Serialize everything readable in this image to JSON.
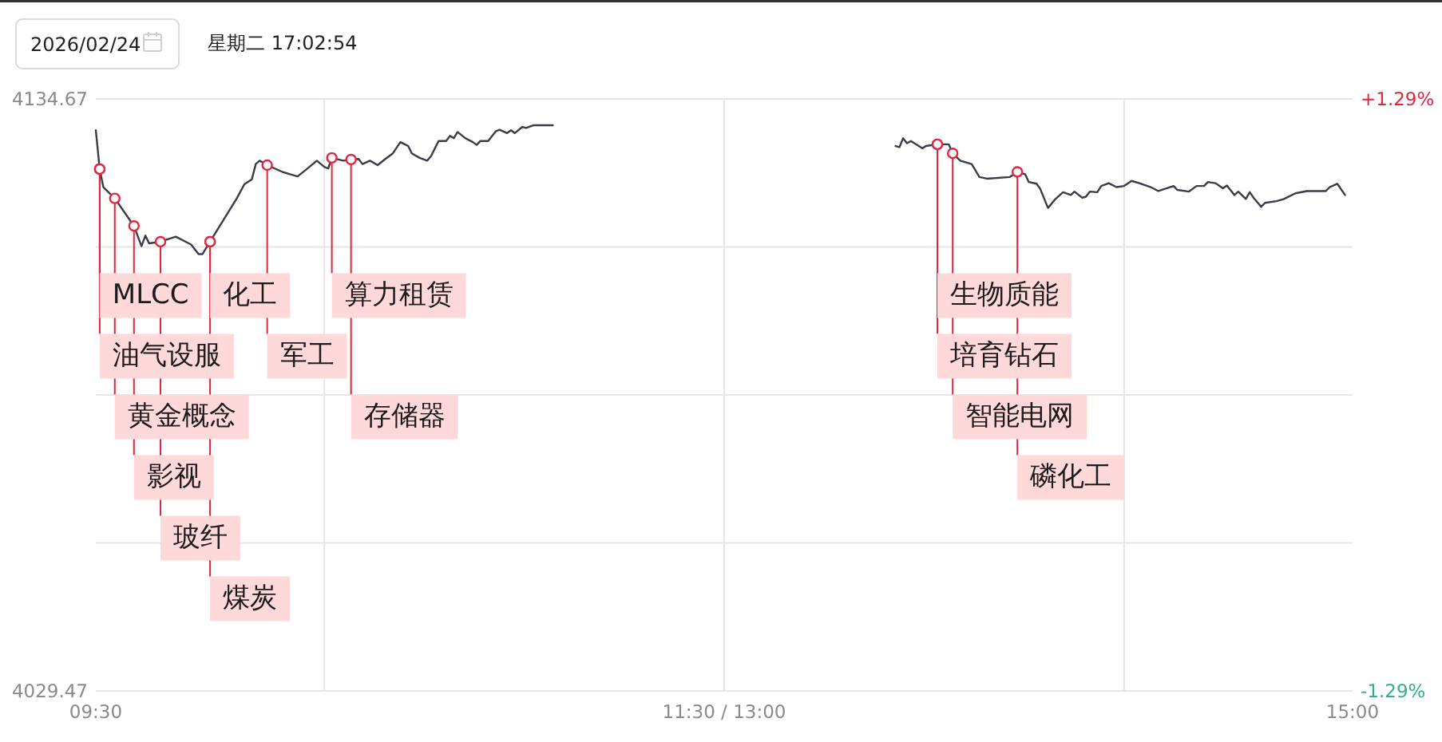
{
  "chart_data": {
    "type": "line",
    "title": "2026/02/24",
    "subtitle": "星期二 17:02:54",
    "x": [
      9.5,
      9.517,
      9.533,
      9.583,
      9.667,
      9.7,
      9.717,
      9.733,
      9.783,
      9.85,
      9.917,
      9.95,
      9.967,
      10.0,
      10.117,
      10.15,
      10.183,
      10.2,
      10.217,
      10.25,
      10.317,
      10.35,
      10.383,
      10.417,
      10.467,
      10.5,
      10.517,
      10.533,
      10.583,
      10.617,
      10.65,
      10.667,
      10.7,
      10.733,
      10.767,
      10.8,
      10.833,
      10.867,
      10.883,
      10.917,
      10.95,
      10.967,
      11.0,
      11.033,
      11.05,
      11.067,
      11.083,
      11.117,
      11.15,
      11.167,
      11.183,
      11.217,
      11.25,
      11.267,
      11.3,
      11.317,
      11.333,
      11.367,
      11.383,
      11.417,
      11.5,
      12.25,
      13.0,
      13.017,
      13.033,
      13.05,
      13.067,
      13.117,
      13.133,
      13.183,
      13.233,
      13.25,
      13.283,
      13.333,
      13.367,
      13.4,
      13.5,
      13.533,
      13.567,
      13.583,
      13.617,
      13.633,
      13.667,
      13.7,
      13.733,
      13.767,
      13.783,
      13.817,
      13.833,
      13.85,
      13.883,
      13.9,
      13.933,
      13.967,
      14.0,
      14.033,
      14.067,
      14.117,
      14.15,
      14.217,
      14.233,
      14.283,
      14.317,
      14.35,
      14.367,
      14.4,
      14.433,
      14.45,
      14.483,
      14.5,
      14.533,
      14.55,
      14.567,
      14.6,
      14.617,
      14.667,
      14.7,
      14.75,
      14.8,
      14.883,
      14.9,
      14.933,
      14.967
    ],
    "values": [
      4129.1,
      4122.2,
      4119.0,
      4117.0,
      4112.1,
      4108.5,
      4110.4,
      4109.0,
      4109.3,
      4110.2,
      4108.8,
      4107.1,
      4107.1,
      4109.3,
      4117.0,
      4119.5,
      4120.4,
      4123.1,
      4123.7,
      4122.9,
      4121.7,
      4121.3,
      4120.9,
      4122.0,
      4123.7,
      4122.6,
      4122.3,
      4124.2,
      4123.7,
      4123.9,
      4124.0,
      4123.1,
      4123.7,
      4122.9,
      4124.0,
      4125.0,
      4127.0,
      4126.3,
      4125.0,
      4124.2,
      4123.7,
      4124.5,
      4127.2,
      4127.2,
      4128.1,
      4127.7,
      4128.8,
      4127.7,
      4127.0,
      4126.5,
      4127.2,
      4127.2,
      4128.9,
      4129.2,
      4128.6,
      4129.1,
      4128.6,
      4129.7,
      4129.5,
      4130.0,
      4130.0,
      null,
      4126.3,
      4126.1,
      4127.7,
      4126.8,
      4127.2,
      4125.9,
      4126.3,
      4126.6,
      4126.6,
      4125.0,
      4123.7,
      4123.1,
      4120.8,
      4120.5,
      4120.8,
      4121.7,
      4121.3,
      4119.9,
      4119.6,
      4118.7,
      4115.3,
      4116.9,
      4118.1,
      4117.6,
      4118.2,
      4117.1,
      4117.3,
      4118.2,
      4118.1,
      4119.2,
      4119.7,
      4119.0,
      4119.2,
      4120.1,
      4119.7,
      4119.0,
      4118.3,
      4119.2,
      4118.5,
      4118.2,
      4119.2,
      4119.2,
      4119.9,
      4119.7,
      4118.8,
      4119.3,
      4117.6,
      4118.2,
      4116.9,
      4118.1,
      4117.1,
      4115.5,
      4116.2,
      4116.5,
      4116.9,
      4117.9,
      4118.3,
      4118.3,
      4119.0,
      4119.6,
      4117.6
    ],
    "color": "#3b3b4a",
    "xlim": [
      9.5,
      15
    ],
    "xticks": [
      {
        "value": 9.5,
        "label": "09:30"
      },
      {
        "value": 10.5,
        "label": null
      },
      {
        "value": 12.25,
        "label": "11:30 / 13:00"
      },
      {
        "value": 14,
        "label": null
      },
      {
        "value": 15,
        "label": "15:00"
      }
    ],
    "ylim": [
      4029.47,
      4134.67
    ],
    "yticks": [
      4029.47,
      {
        "value": 4055.77,
        "label": null
      },
      {
        "value": 4082.07,
        "label": null
      },
      {
        "value": 4108.37,
        "label": null
      },
      4134.67
    ],
    "y2lim": [
      -1.29,
      1.29
    ],
    "y2ticks": [
      {
        "value": -1.29,
        "label": "-1.29%"
      },
      {
        "value": 1.29,
        "label": "+1.29%"
      }
    ],
    "grid": true,
    "annotations": [
      {
        "text": "MLCC",
        "x": 9.517,
        "y": 4122.2
      },
      {
        "text": "油气设服",
        "x": 9.517,
        "y": 4122.2
      },
      {
        "text": "黄金概念",
        "x": 9.583,
        "y": 4117.0
      },
      {
        "text": "影视",
        "x": 9.667,
        "y": 4112.1
      },
      {
        "text": "玻纤",
        "x": 9.783,
        "y": 4109.3
      },
      {
        "text": "化工",
        "x": 10.0,
        "y": 4109.3
      },
      {
        "text": "煤炭",
        "x": 10.0,
        "y": 4109.3
      },
      {
        "text": "军工",
        "x": 10.25,
        "y": 4122.9
      },
      {
        "text": "算力租赁",
        "x": 10.533,
        "y": 4124.2
      },
      {
        "text": "存储器",
        "x": 10.617,
        "y": 4123.9
      },
      {
        "text": "生物质能",
        "x": 13.183,
        "y": 4126.6
      },
      {
        "text": "培育钻石",
        "x": 13.183,
        "y": 4126.6
      },
      {
        "text": "智能电网",
        "x": 13.25,
        "y": 4125.0
      },
      {
        "text": "磷化工",
        "x": 13.533,
        "y": 4121.7
      }
    ]
  }
}
